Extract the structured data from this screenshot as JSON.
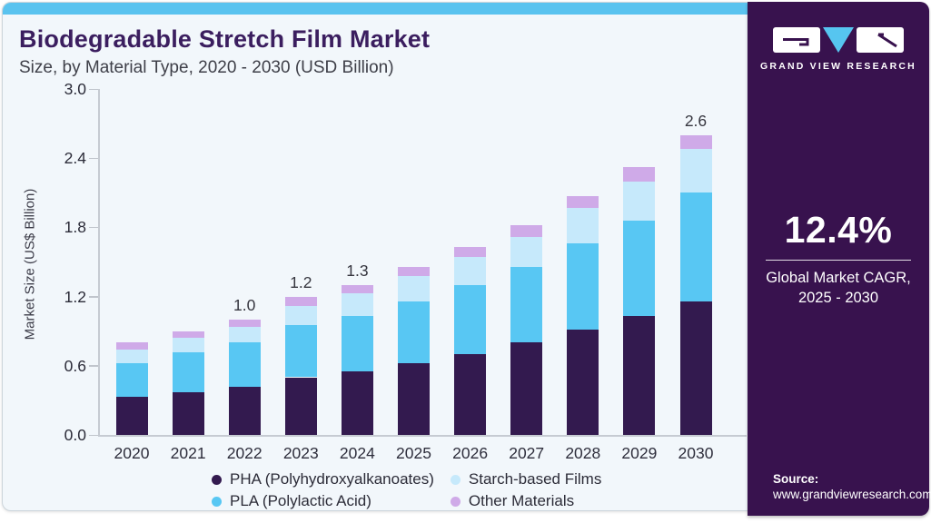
{
  "header": {
    "title": "Biodegradable Stretch Film Market",
    "subtitle": "Size, by Material Type, 2020 - 2030 (USD Billion)"
  },
  "chart_data": {
    "type": "bar",
    "stacked": true,
    "title": "Biodegradable Stretch Film Market",
    "subtitle": "Size, by Material Type, 2020 - 2030 (USD Billion)",
    "xlabel": "",
    "ylabel": "Market Size (US$ Billion)",
    "ylim": [
      0,
      3.0
    ],
    "yticks": [
      "0.0",
      "0.6",
      "1.2",
      "1.8",
      "2.4",
      "3.0"
    ],
    "grid": false,
    "legend_position": "bottom",
    "categories": [
      "2020",
      "2021",
      "2022",
      "2023",
      "2024",
      "2025",
      "2026",
      "2027",
      "2028",
      "2029",
      "2030"
    ],
    "series": [
      {
        "name": "PHA (Polyhydroxyalkanoates)",
        "color": "#331a4f",
        "values": [
          0.33,
          0.37,
          0.42,
          0.5,
          0.55,
          0.62,
          0.7,
          0.8,
          0.91,
          1.03,
          1.16
        ]
      },
      {
        "name": "PLA (Polylactic Acid)",
        "color": "#58c7f3",
        "values": [
          0.29,
          0.35,
          0.38,
          0.45,
          0.48,
          0.54,
          0.6,
          0.66,
          0.75,
          0.83,
          0.94
        ]
      },
      {
        "name": "Starch-based Films",
        "color": "#c6e9fb",
        "values": [
          0.12,
          0.12,
          0.14,
          0.17,
          0.2,
          0.22,
          0.24,
          0.26,
          0.31,
          0.34,
          0.38
        ]
      },
      {
        "name": "Other Materials",
        "color": "#cfaae8",
        "values": [
          0.06,
          0.06,
          0.06,
          0.08,
          0.07,
          0.08,
          0.09,
          0.1,
          0.1,
          0.12,
          0.12
        ]
      }
    ],
    "bar_total_labels": [
      "",
      "",
      "1.0",
      "1.2",
      "1.3",
      "",
      "",
      "",
      "",
      "",
      "2.6"
    ]
  },
  "sidebar": {
    "logo_text": "GRAND VIEW RESEARCH",
    "cagr_value": "12.4%",
    "cagr_label_line1": "Global Market CAGR,",
    "cagr_label_line2": "2025 - 2030",
    "source_label": "Source:",
    "source_url": "www.grandviewresearch.com"
  },
  "colors": {
    "accent_strip": "#5ac3ef",
    "card_background": "#f2f7fb",
    "sidebar_background": "#38124e",
    "title_text": "#3b1e5f",
    "logo_triangle": "#56c5f0"
  }
}
